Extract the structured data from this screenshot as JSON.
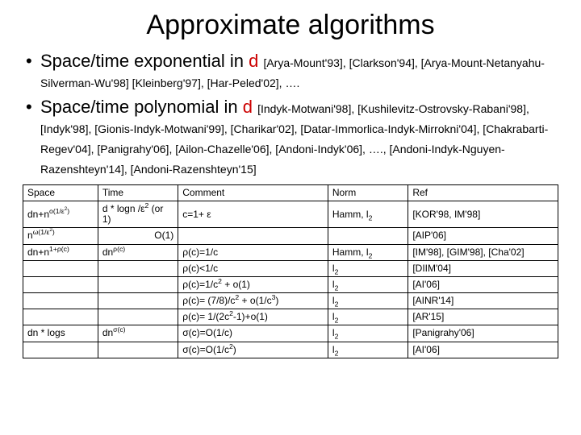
{
  "title": "Approximate algorithms",
  "bullet1": {
    "lead": "Space/time exponential in ",
    "d": "d",
    "cites": "[Arya-Mount'93], [Clarkson'94], [Arya-Mount-Netanyahu-Silverman-Wu'98] [Kleinberg'97], [Har-Peled'02], …."
  },
  "bullet2": {
    "lead": "Space/time polynomial in ",
    "d": "d",
    "cites": "[Indyk-Motwani'98], [Kushilevitz-Ostrovsky-Rabani'98], [Indyk'98], [Gionis-Indyk-Motwani'99], [Charikar'02], [Datar-Immorlica-Indyk-Mirrokni'04], [Chakrabarti-Regev'04], [Panigrahy'06], [Ailon-Chazelle'06], [Andoni-Indyk'06], …., [Andoni-Indyk-Nguyen-Razenshteyn'14], [Andoni-Razenshteyn'15]"
  },
  "table": {
    "headers": {
      "space": "Space",
      "time": "Time",
      "comment": "Comment",
      "norm": "Norm",
      "ref": "Ref"
    },
    "rows": [
      {
        "space": "dn+n<sup>o(1/ε<sup>2</sup>)</sup>",
        "time": "d * logn /ε<sup>2</sup> (or 1)",
        "comment": "c=1+ ε",
        "norm": "Hamm, l<sub>2</sub>",
        "ref": "[KOR'98, IM'98]"
      },
      {
        "space": "n<sup>ω(1/ε<sup>2</sup>)</sup>",
        "time_right": "O(1)",
        "comment": "",
        "norm": "",
        "ref": "[AIP'06]"
      },
      {
        "space": "dn+n<sup>1+ρ(c)</sup>",
        "time": "dn<sup>ρ(c)</sup>",
        "comment": "ρ(c)=1/c",
        "norm": "Hamm, l<sub>2</sub>",
        "ref": "[IM'98], [GIM'98], [Cha'02]"
      },
      {
        "space": "",
        "time": "",
        "comment": "ρ(c)<1/c",
        "norm": "l<sub>2</sub>",
        "ref": "[DIIM'04]"
      },
      {
        "space": "",
        "time": "",
        "comment": "ρ(c)=1/c<sup>2</sup> + o(1)",
        "norm": "l<sub>2</sub>",
        "ref": "[AI'06]"
      },
      {
        "space": "",
        "time": "",
        "comment": "ρ(c)= (7/8)/c<sup>2</sup> + o(1/c<sup>3</sup>)",
        "norm": "l<sub>2</sub>",
        "ref": "[AINR'14]"
      },
      {
        "space": "",
        "time": "",
        "comment": "ρ(c)= 1/(2c<sup>2</sup>-1)+o(1)",
        "norm": "l<sub>2</sub>",
        "ref": "[AR'15]"
      },
      {
        "space": "dn * logs",
        "time": "dn<sup>σ(c)</sup>",
        "comment": "σ(c)=O(1/c)",
        "norm": "l<sub>2</sub>",
        "ref": "[Panigrahy'06]"
      },
      {
        "space": "",
        "time": "",
        "comment": "σ(c)=O(1/c<sup>2</sup>)",
        "norm": "l<sub>2</sub>",
        "ref": "[AI'06]"
      }
    ]
  }
}
